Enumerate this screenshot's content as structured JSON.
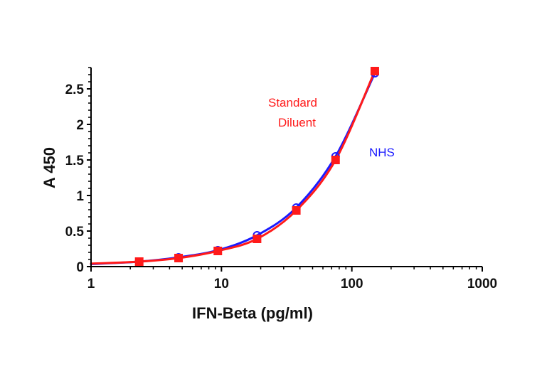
{
  "chart_data": {
    "type": "scatter",
    "xlabel": "IFN-Beta (pg/ml)",
    "ylabel": "A 450",
    "x_scale": "log",
    "xlim": [
      1,
      1000
    ],
    "ylim": [
      0,
      2.8
    ],
    "x_ticks": [
      1,
      10,
      100,
      1000
    ],
    "x_tick_labels": [
      "1",
      "10",
      "100",
      "1000"
    ],
    "y_ticks": [
      0,
      0.5,
      1,
      1.5,
      2,
      2.5
    ],
    "y_tick_labels": [
      "0",
      "0.5",
      "1",
      "1.5",
      "2",
      "2.5"
    ],
    "grid": false,
    "legend": "none",
    "series": [
      {
        "name": "NHS",
        "color": "#1a1aff",
        "marker": "open-circle",
        "x": [
          2.34,
          4.69,
          9.38,
          18.75,
          37.5,
          75,
          150
        ],
        "y": [
          0.07,
          0.13,
          0.23,
          0.44,
          0.83,
          1.55,
          2.72
        ],
        "fit_curve": true
      },
      {
        "name": "Standard Diluent",
        "color": "#ff1a1a",
        "marker": "filled-square",
        "x": [
          2.34,
          4.69,
          9.38,
          18.75,
          37.5,
          75,
          150
        ],
        "y": [
          0.07,
          0.12,
          0.22,
          0.39,
          0.79,
          1.5,
          2.75
        ],
        "fit_curve": true
      }
    ],
    "annotations": [
      {
        "lines": [
          "Standard",
          "Diluent"
        ],
        "color": "#ff1a1a"
      },
      {
        "lines": [
          "NHS"
        ],
        "color": "#1a1aff"
      }
    ]
  }
}
